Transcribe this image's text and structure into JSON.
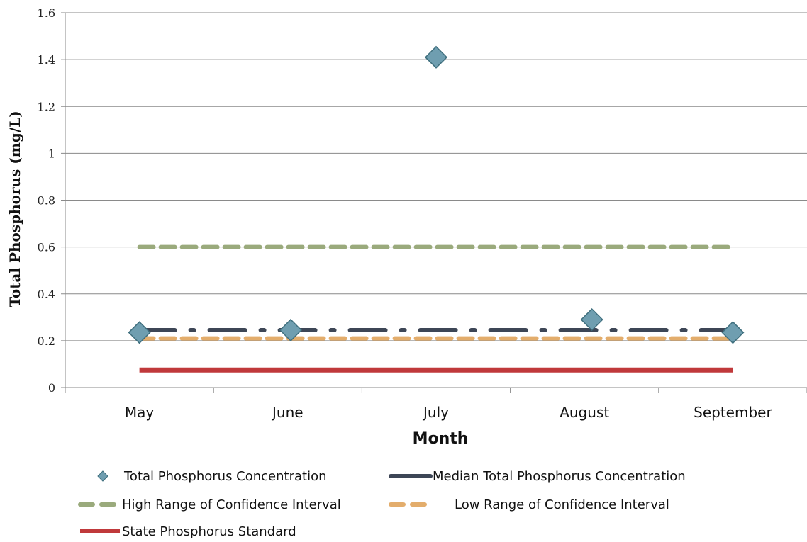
{
  "chart_data": {
    "type": "line",
    "title": "",
    "xlabel": "Month",
    "ylabel": "Total Phosphorus (mg/L)",
    "categories": [
      "May",
      "June",
      "July",
      "August",
      "September"
    ],
    "ylim": [
      0,
      1.6
    ],
    "yticks": [
      0,
      0.2,
      0.4,
      0.6,
      0.8,
      1,
      1.2,
      1.4,
      1.6
    ],
    "ytick_labels": [
      "0",
      "0.2",
      "0.4",
      "0.6",
      "0.8",
      "1",
      "1.2",
      "1.4",
      "1.6"
    ],
    "grid": "horizontal",
    "legend_position": "bottom",
    "series": [
      {
        "name": "Total Phosphorus Concentration",
        "kind": "scatter",
        "marker": "diamond",
        "color": "#6f9eb0",
        "stroke": "#3f6f7e",
        "points": [
          {
            "x": 0.0,
            "y": 0.235
          },
          {
            "x": 1.02,
            "y": 0.245
          },
          {
            "x": 2.0,
            "y": 1.41
          },
          {
            "x": 3.05,
            "y": 0.29
          },
          {
            "x": 4.0,
            "y": 0.235
          }
        ]
      },
      {
        "name": "Median Total Phosphorus Concentration",
        "kind": "line",
        "style": "dash-dot",
        "color": "#3d4656",
        "value": 0.245,
        "x_range": [
          0.0,
          4.0
        ]
      },
      {
        "name": "High Range of Confidence Interval",
        "kind": "line",
        "style": "dash",
        "color": "#9aaa7c",
        "value": 0.6,
        "x_range": [
          0.0,
          4.0
        ]
      },
      {
        "name": "Low Range of Confidence Interval",
        "kind": "line",
        "style": "dash",
        "color": "#e3ad6c",
        "value": 0.21,
        "x_range": [
          0.0,
          4.0
        ]
      },
      {
        "name": "State Phosphorus Standard",
        "kind": "line",
        "style": "solid",
        "color": "#c0393b",
        "value": 0.075,
        "x_range": [
          0.0,
          4.0
        ]
      }
    ]
  }
}
